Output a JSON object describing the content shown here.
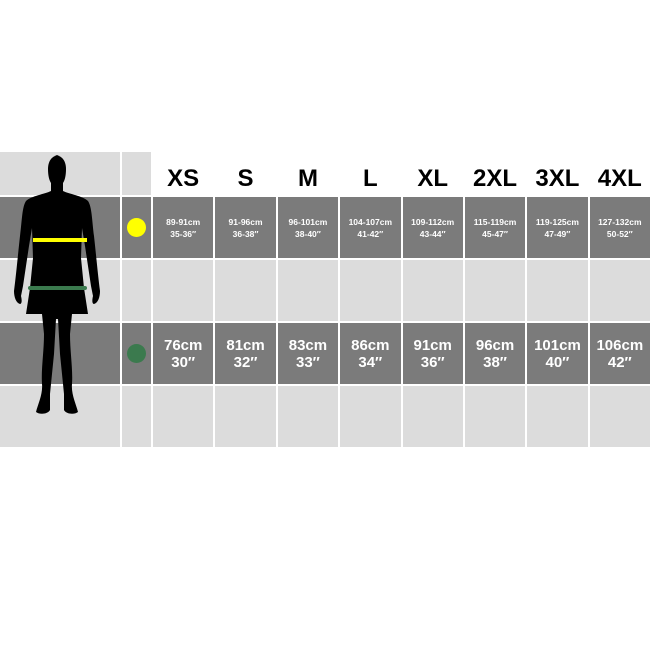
{
  "sizes": [
    "XS",
    "S",
    "M",
    "L",
    "XL",
    "2XL",
    "3XL",
    "4XL"
  ],
  "chest": {
    "icon": "yellow-dot-chest",
    "color": "#ffff00",
    "cm": [
      "89-91cm",
      "91-96cm",
      "96-101cm",
      "104-107cm",
      "109-112cm",
      "115-119cm",
      "119-125cm",
      "127-132cm"
    ],
    "inch": [
      "35-36″",
      "36-38″",
      "38-40″",
      "41-42″",
      "43-44″",
      "45-47″",
      "47-49″",
      "50-52″"
    ]
  },
  "waist": {
    "icon": "green-dot-waist",
    "color": "#3b7a4e",
    "cm": [
      "76cm",
      "81cm",
      "83cm",
      "86cm",
      "91cm",
      "96cm",
      "101cm",
      "106cm"
    ],
    "inch": [
      "30″",
      "32″",
      "33″",
      "34″",
      "36″",
      "38″",
      "40″",
      "42″"
    ]
  }
}
